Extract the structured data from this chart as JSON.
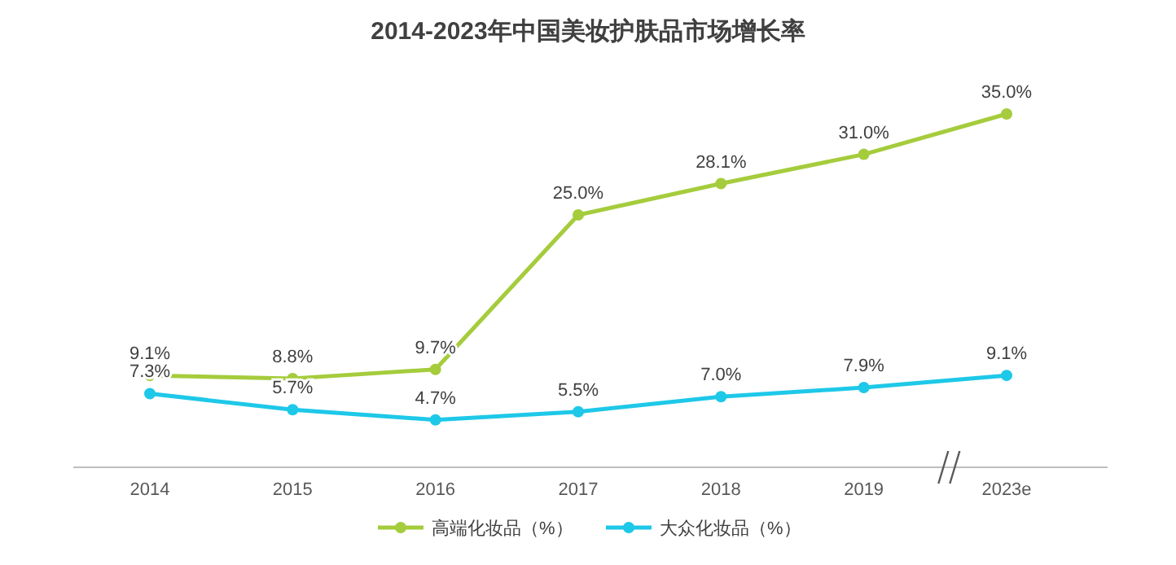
{
  "chart_data": {
    "type": "line",
    "title": "2014-2023年中国美妆护肤品市场增长率",
    "categories": [
      "2014",
      "2015",
      "2016",
      "2017",
      "2018",
      "2019",
      "2023e"
    ],
    "series": [
      {
        "name": "高端化妆品（%）",
        "color": "#a5cc3c",
        "values": [
          9.1,
          8.8,
          9.7,
          25.0,
          28.1,
          31.0,
          35.0
        ],
        "value_labels": [
          "9.1%",
          "8.8%",
          "9.7%",
          "25.0%",
          "28.1%",
          "31.0%",
          "35.0%"
        ]
      },
      {
        "name": "大众化妆品（%）",
        "color": "#1ec8e8",
        "values": [
          7.3,
          5.7,
          4.7,
          5.5,
          7.0,
          7.9,
          9.1
        ],
        "value_labels": [
          "7.3%",
          "5.7%",
          "4.7%",
          "5.5%",
          "7.0%",
          "7.9%",
          "9.1%"
        ]
      }
    ],
    "marker": "circle",
    "line_style": "solid",
    "legend": "bottom"
  }
}
